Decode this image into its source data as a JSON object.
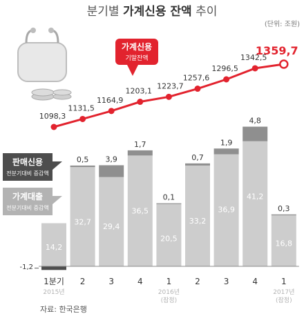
{
  "title": {
    "prefix": "분기별 ",
    "bold": "가계신용 잔액",
    "suffix": " 추이"
  },
  "unit": "(단위: 조원)",
  "source": "자료: 한국은행",
  "chart_data": {
    "type": "bar+line",
    "categories": [
      "1분기",
      "2",
      "3",
      "4",
      "1",
      "2",
      "3",
      "4",
      "1"
    ],
    "category_sublabels": [
      "2015년",
      "",
      "",
      "",
      "2016년\n(잠정)",
      "",
      "",
      "",
      "2017년\n(잠정)"
    ],
    "line": {
      "name": "가계신용",
      "sublabel": "기말잔액",
      "values": [
        1098.3,
        1131.5,
        1164.9,
        1203.1,
        1223.7,
        1257.6,
        1296.5,
        1342.5,
        1359.7
      ],
      "labels": [
        "1098,3",
        "1131,5",
        "1164,9",
        "1203,1",
        "1223,7",
        "1257,6",
        "1296,5",
        "1342,5",
        "1359,7"
      ],
      "color": "#e2232e"
    },
    "series": [
      {
        "name": "가계대출",
        "sublabel": "전분기대비 증감액",
        "values": [
          14.2,
          32.7,
          29.4,
          36.5,
          20.5,
          33.2,
          36.9,
          41.2,
          16.8
        ],
        "labels": [
          "14,2",
          "32,7",
          "29,4",
          "36,5",
          "20,5",
          "33,2",
          "36,9",
          "41,2",
          "16,8"
        ],
        "color": "#cdcdcd"
      },
      {
        "name": "판매신용",
        "sublabel": "전분기대비 증감액",
        "values": [
          -1.2,
          0.5,
          3.9,
          1.7,
          0.1,
          0.7,
          1.9,
          4.8,
          0.3
        ],
        "labels": [
          "-1,2",
          "0,5",
          "3,9",
          "1,7",
          "0,1",
          "0,7",
          "1,9",
          "4,8",
          "0,3"
        ],
        "color": "#8f8f8f"
      }
    ],
    "colors": {
      "dark_bar": "#4d4d4d",
      "label_grey": "#b3b3b3"
    }
  }
}
